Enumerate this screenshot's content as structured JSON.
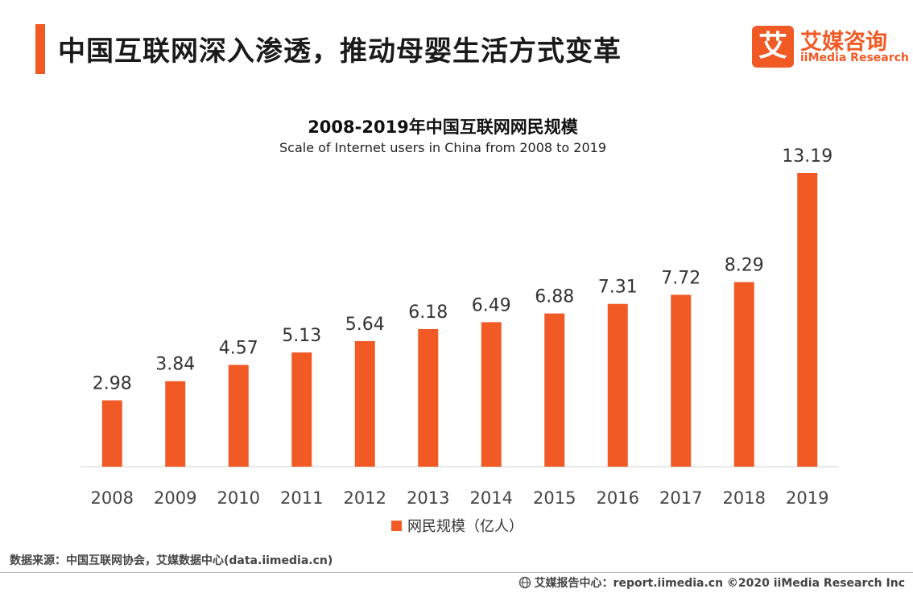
{
  "header": {
    "title": "中国互联网深入渗透，推动母婴生活方式变革",
    "logo_glyph": "艾",
    "logo_cn": "艾媒咨询",
    "logo_en": "iiMedia Research"
  },
  "chart_data": {
    "type": "bar",
    "title": "2008-2019年中国互联网网民规模",
    "subtitle": "Scale of Internet users in China from 2008 to 2019",
    "categories": [
      "2008",
      "2009",
      "2010",
      "2011",
      "2012",
      "2013",
      "2014",
      "2015",
      "2016",
      "2017",
      "2018",
      "2019"
    ],
    "series": [
      {
        "name": "网民规模（亿人）",
        "values": [
          2.98,
          3.84,
          4.57,
          5.13,
          5.64,
          6.18,
          6.49,
          6.88,
          7.31,
          7.72,
          8.29,
          13.19
        ],
        "color": "#f15a24"
      }
    ],
    "ylim": [
      0,
      13.19
    ],
    "grid": false,
    "legend": "bottom-center",
    "data_labels": true
  },
  "footer": {
    "source": "数据来源：中国互联网协会，艾媒数据中心(data.iimedia.cn)",
    "globe_icon": "globe-icon",
    "report": "艾媒报告中心：report.iimedia.cn  ©2020  iiMedia Research  Inc"
  }
}
